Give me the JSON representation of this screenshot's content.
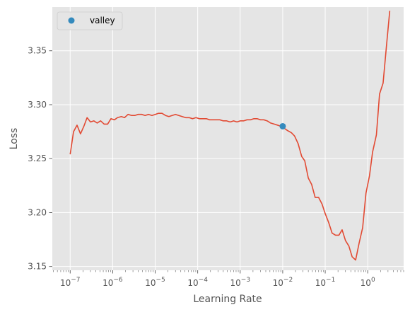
{
  "chart_data": {
    "type": "line",
    "title": "",
    "xlabel": "Learning Rate",
    "ylabel": "Loss",
    "xscale": "log",
    "xlim": [
      3.8e-08,
      7.0
    ],
    "ylim": [
      3.1465,
      3.3905
    ],
    "grid": true,
    "legend_position": "top-left",
    "x_ticks": [
      {
        "value": 1e-07,
        "base": "10",
        "exp": "−7"
      },
      {
        "value": 1e-06,
        "base": "10",
        "exp": "−6"
      },
      {
        "value": 1e-05,
        "base": "10",
        "exp": "−5"
      },
      {
        "value": 0.0001,
        "base": "10",
        "exp": "−4"
      },
      {
        "value": 0.001,
        "base": "10",
        "exp": "−3"
      },
      {
        "value": 0.01,
        "base": "10",
        "exp": "−2"
      },
      {
        "value": 0.1,
        "base": "10",
        "exp": "−1"
      },
      {
        "value": 1,
        "base": "10",
        "exp": "0"
      }
    ],
    "y_ticks": [
      {
        "value": 3.15,
        "label": "3.15"
      },
      {
        "value": 3.2,
        "label": "3.20"
      },
      {
        "value": 3.25,
        "label": "3.25"
      },
      {
        "value": 3.3,
        "label": "3.30"
      },
      {
        "value": 3.35,
        "label": "3.35"
      }
    ],
    "colors": {
      "line": "#E24A33",
      "marker": "#348ABD",
      "plot_bg": "#E5E5E5",
      "grid": "#FFFFFF",
      "text": "#555555"
    },
    "series": [
      {
        "type": "line",
        "x": [
          1e-07,
          1.2e-07,
          1.45e-07,
          1.75e-07,
          2.1e-07,
          2.5e-07,
          3e-07,
          3.6e-07,
          4.3e-07,
          5.2e-07,
          6.3e-07,
          7.6e-07,
          9.1e-07,
          1.1e-06,
          1.3e-06,
          1.6e-06,
          1.9e-06,
          2.3e-06,
          2.8e-06,
          3.3e-06,
          4e-06,
          4.8e-06,
          5.8e-06,
          7e-06,
          8.4e-06,
          1e-05,
          1.2e-05,
          1.45e-05,
          1.75e-05,
          2.1e-05,
          2.5e-05,
          3e-05,
          3.6e-05,
          4.3e-05,
          5.2e-05,
          6.3e-05,
          7.6e-05,
          9.1e-05,
          0.00011,
          0.00013,
          0.00016,
          0.00019,
          0.00023,
          0.00028,
          0.00033,
          0.0004,
          0.00048,
          0.00058,
          0.0007,
          0.00084,
          0.001,
          0.0012,
          0.00145,
          0.00175,
          0.0021,
          0.0025,
          0.003,
          0.0036,
          0.0043,
          0.0052,
          0.0063,
          0.0076,
          0.0091,
          0.011,
          0.013,
          0.016,
          0.019,
          0.023,
          0.028,
          0.033,
          0.04,
          0.048,
          0.058,
          0.07,
          0.084,
          0.1,
          0.12,
          0.145,
          0.175,
          0.21,
          0.25,
          0.3,
          0.36,
          0.43,
          0.52,
          0.63,
          0.76,
          0.91,
          1.1,
          1.3,
          1.6,
          1.9,
          2.3,
          2.8,
          3.3
        ],
        "y": [
          3.254,
          3.275,
          3.281,
          3.273,
          3.28,
          3.288,
          3.284,
          3.285,
          3.283,
          3.285,
          3.282,
          3.282,
          3.287,
          3.286,
          3.288,
          3.289,
          3.288,
          3.291,
          3.29,
          3.29,
          3.291,
          3.291,
          3.29,
          3.291,
          3.29,
          3.291,
          3.292,
          3.292,
          3.29,
          3.289,
          3.29,
          3.291,
          3.29,
          3.289,
          3.288,
          3.288,
          3.287,
          3.288,
          3.287,
          3.287,
          3.287,
          3.286,
          3.286,
          3.286,
          3.286,
          3.285,
          3.285,
          3.284,
          3.285,
          3.284,
          3.285,
          3.285,
          3.286,
          3.286,
          3.287,
          3.287,
          3.286,
          3.286,
          3.285,
          3.283,
          3.282,
          3.281,
          3.28,
          3.278,
          3.276,
          3.274,
          3.271,
          3.264,
          3.252,
          3.248,
          3.232,
          3.226,
          3.214,
          3.214,
          3.208,
          3.199,
          3.191,
          3.181,
          3.179,
          3.179,
          3.184,
          3.174,
          3.169,
          3.159,
          3.156,
          3.172,
          3.186,
          3.218,
          3.234,
          3.256,
          3.272,
          3.31,
          3.32,
          3.357,
          3.387
        ]
      },
      {
        "type": "scatter",
        "name": "valley",
        "x": [
          0.01
        ],
        "y": [
          3.28
        ]
      }
    ]
  }
}
